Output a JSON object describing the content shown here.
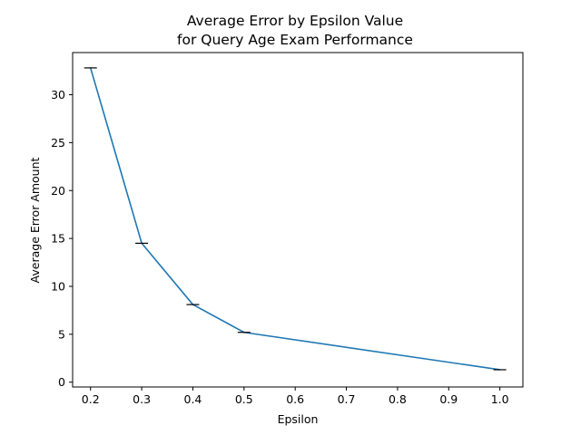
{
  "chart_data": {
    "type": "line",
    "title_line1": "Average Error by Epsilon Value",
    "title_line2": "for Query Age Exam Performance",
    "xlabel": "Epsilon",
    "ylabel": "Average Error Amount",
    "xlim": [
      0.165,
      1.045
    ],
    "ylim": [
      -0.5,
      34.4
    ],
    "xticks": [
      0.2,
      0.3,
      0.4,
      0.5,
      0.6,
      0.7,
      0.8,
      0.9,
      1.0
    ],
    "xtick_labels": [
      "0.2",
      "0.3",
      "0.4",
      "0.5",
      "0.6",
      "0.7",
      "0.8",
      "0.9",
      "1.0"
    ],
    "yticks": [
      0,
      5,
      10,
      15,
      20,
      25,
      30
    ],
    "ytick_labels": [
      "0",
      "5",
      "10",
      "15",
      "20",
      "25",
      "30"
    ],
    "grid": false,
    "line_color": "#1f77b4",
    "errorbar_color": "#000000",
    "series": [
      {
        "x": [
          0.2,
          0.3,
          0.4,
          0.5,
          1.0
        ],
        "y": [
          32.8,
          14.5,
          8.1,
          5.2,
          1.3
        ],
        "yerr": [
          0.05,
          0.05,
          0.05,
          0.05,
          0.05
        ]
      }
    ]
  }
}
